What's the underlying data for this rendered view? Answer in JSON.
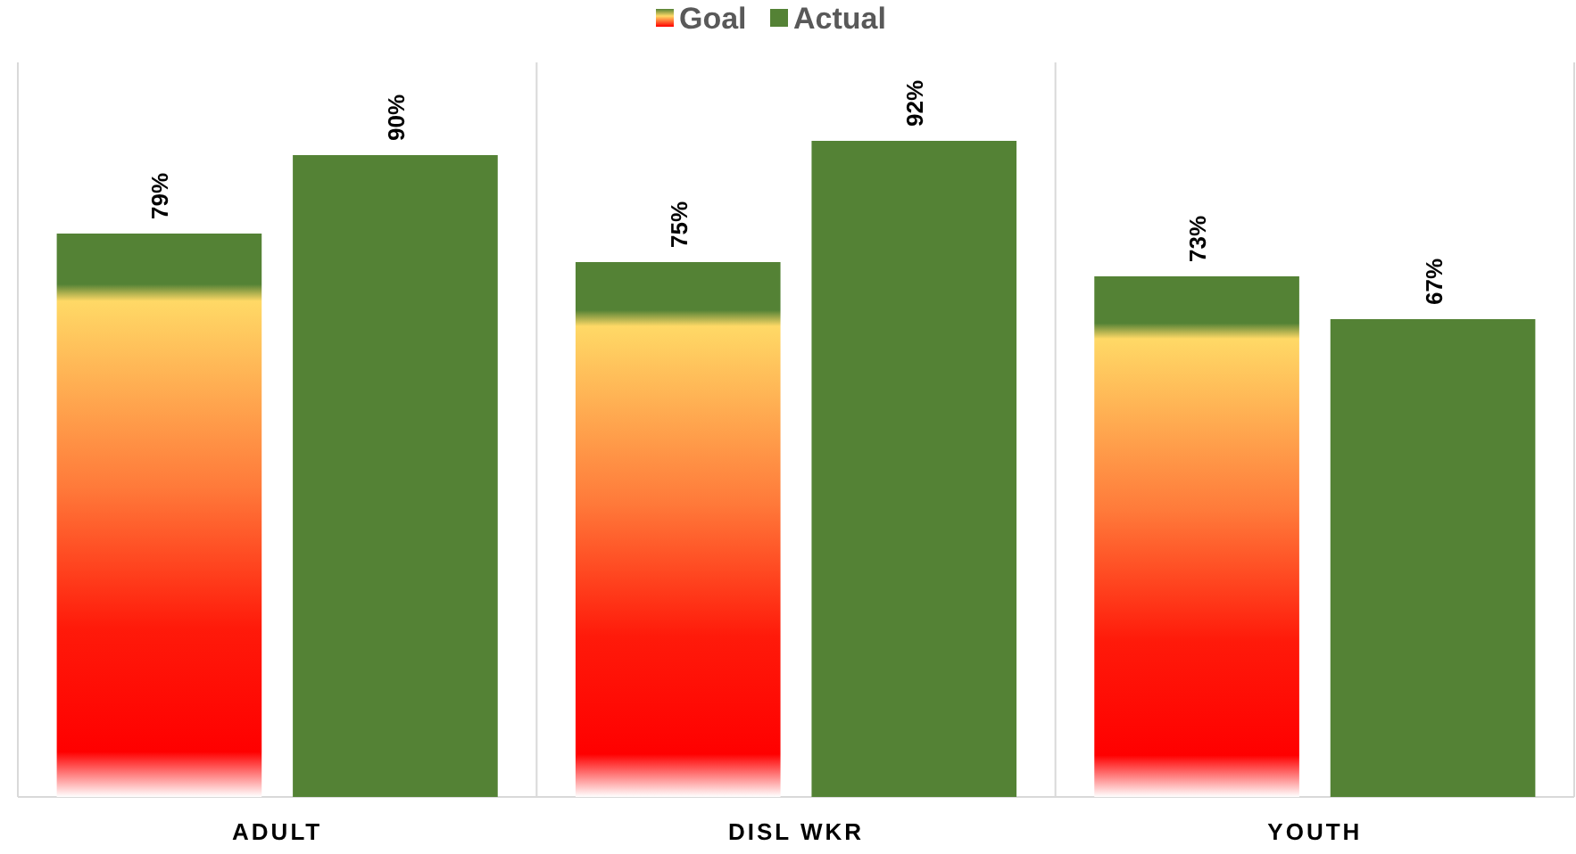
{
  "chart_data": {
    "type": "bar",
    "categories": [
      "ADULT",
      "DISL WKR",
      "YOUTH"
    ],
    "series": [
      {
        "name": "Goal",
        "color": "#548235",
        "values": [
          79,
          75,
          73
        ],
        "value_labels": [
          "79%",
          "75%",
          "73%"
        ]
      },
      {
        "name": "Actual",
        "color": "#548235",
        "values": [
          90,
          92,
          67
        ],
        "value_labels": [
          "90%",
          "92%",
          "67%"
        ]
      }
    ],
    "tick_labels": "x",
    "legend": "top"
  }
}
